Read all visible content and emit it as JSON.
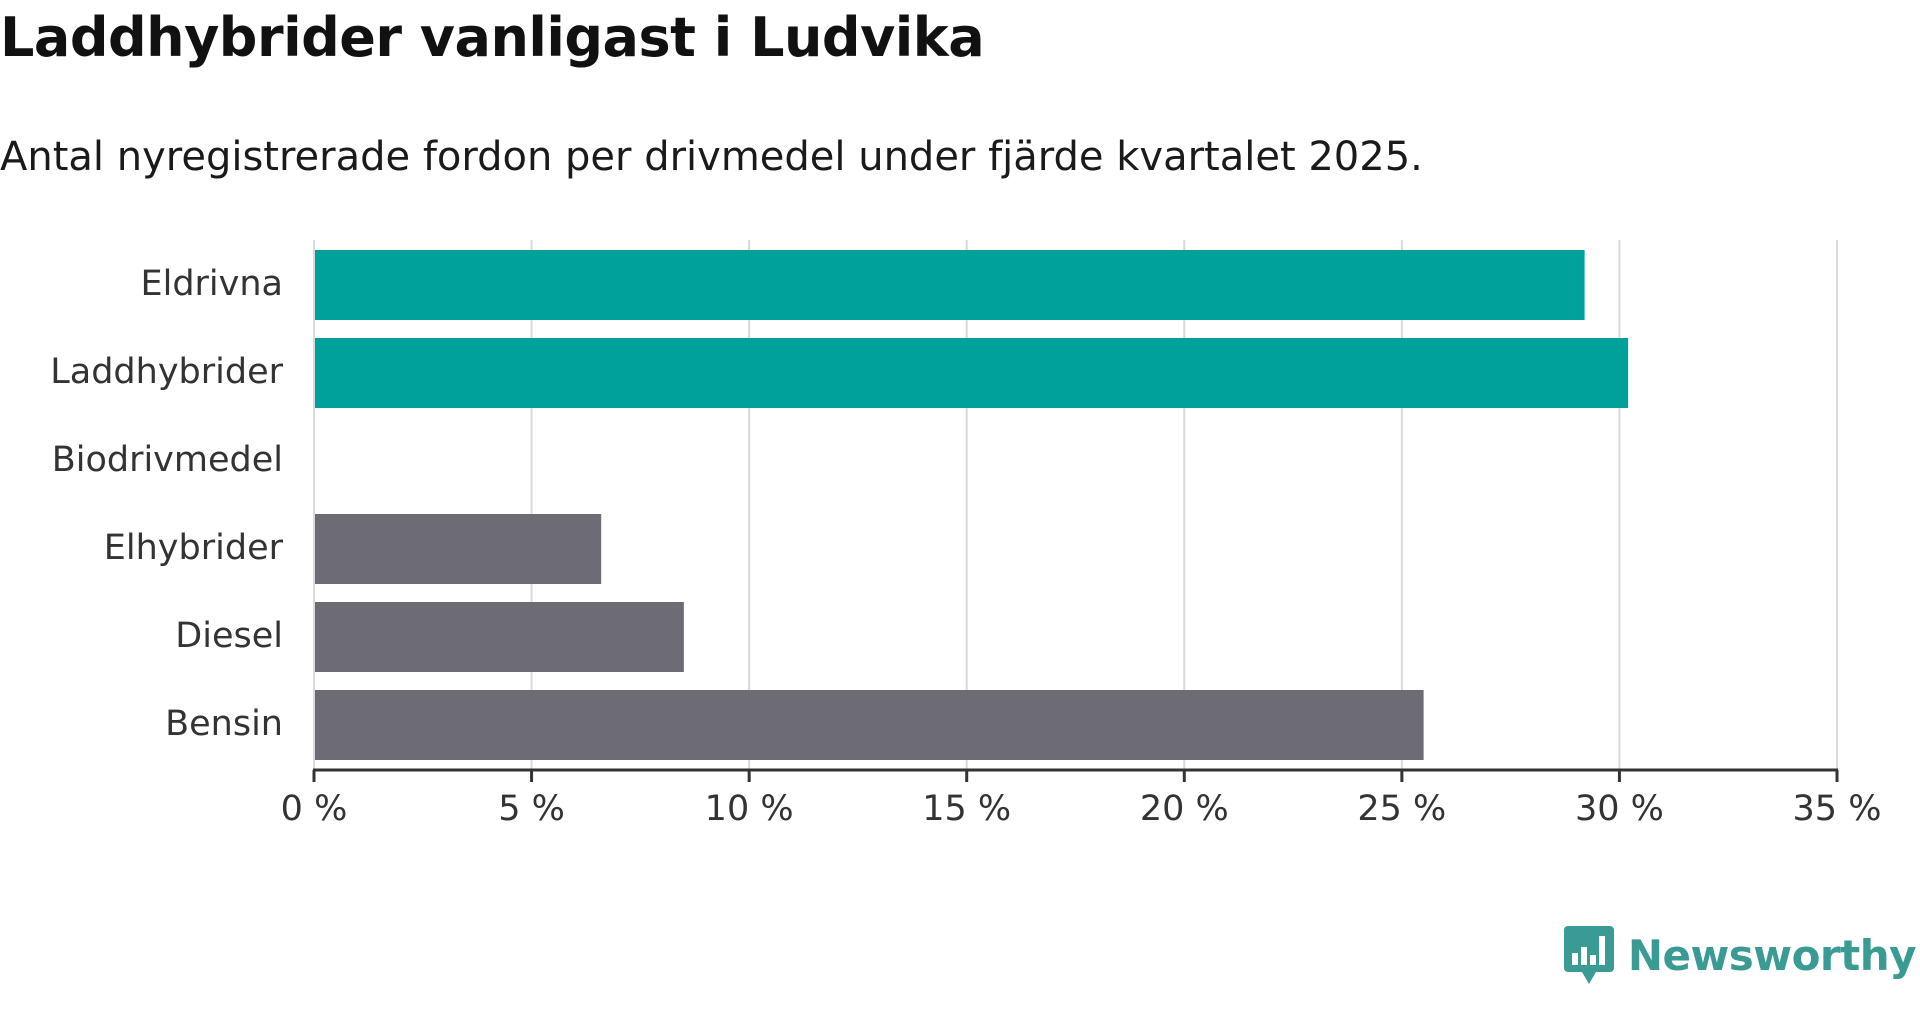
{
  "chart_data": {
    "type": "bar",
    "orientation": "horizontal",
    "title": "Laddhybrider vanligast i Ludvika",
    "subtitle": "Antal nyregistrerade fordon per drivmedel under fjärde kvartalet 2025.",
    "categories": [
      "Eldrivna",
      "Laddhybrider",
      "Biodrivmedel",
      "Elhybrider",
      "Diesel",
      "Bensin"
    ],
    "values": [
      29.2,
      30.2,
      0,
      6.6,
      8.5,
      25.5
    ],
    "bar_colors": [
      "#00a19a",
      "#00a19a",
      "#00a19a",
      "#6d6c74",
      "#6d6c74",
      "#6d6c74"
    ],
    "xlim": [
      0,
      35
    ],
    "xticks": [
      0,
      5,
      10,
      15,
      20,
      25,
      30,
      35
    ],
    "xtick_labels": [
      "0 %",
      "5 %",
      "10 %",
      "15 %",
      "20 %",
      "25 %",
      "30 %",
      "35 %"
    ],
    "xlabel": "",
    "ylabel": "",
    "grid": true,
    "colors": {
      "grid": "#d9d9d9",
      "axis": "#333333",
      "brand": "#3a9a94"
    }
  },
  "brand": {
    "name": "Newsworthy",
    "logo_icon": "newsworthy-logo-icon"
  }
}
